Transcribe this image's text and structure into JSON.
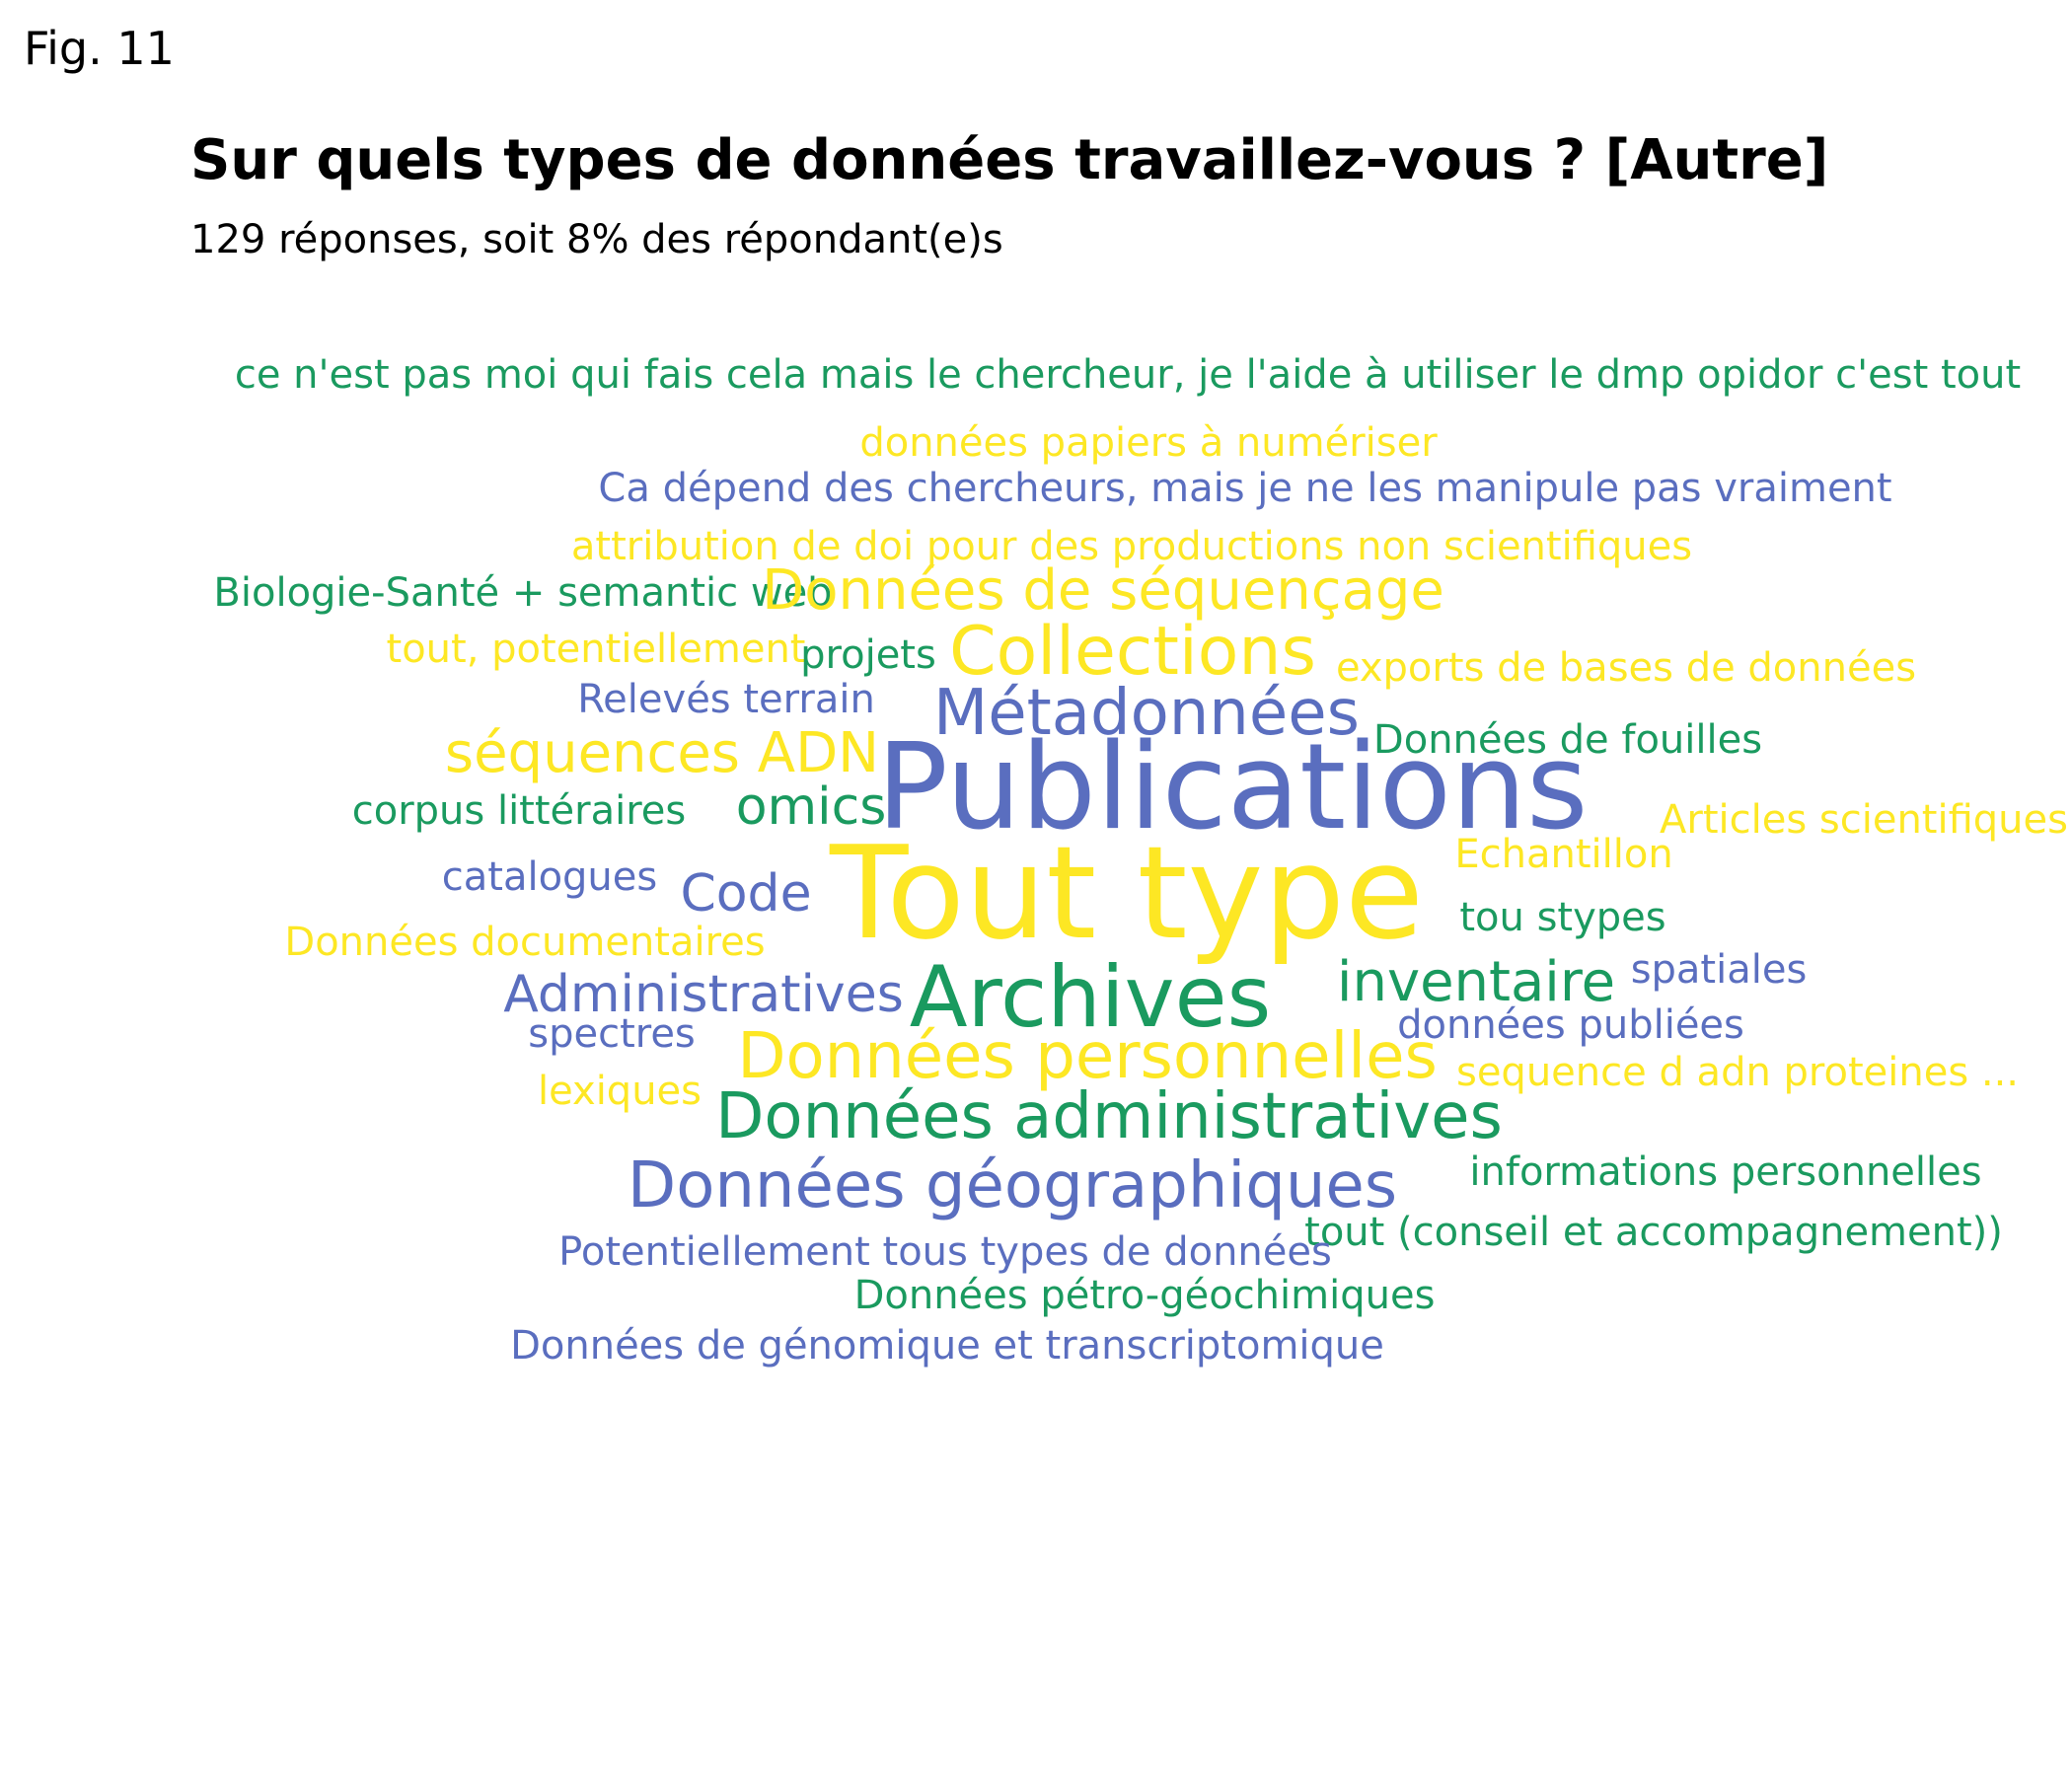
{
  "figure_label": "Fig. 11",
  "title": "Sur quels types de données travaillez-vous ? [Autre]",
  "subtitle": "129 réponses, soit 8% des répondant(e)s",
  "colors": {
    "green": "#1a9a5f",
    "blue": "#5a6ebf",
    "yellow": "#fde724"
  },
  "words": [
    {
      "text": "ce n'est pas moi qui fais cela mais le chercheur, je l'aide à utiliser le dmp opidor c'est tout",
      "color": "green"
    },
    {
      "text": "données papiers à numériser",
      "color": "yellow"
    },
    {
      "text": "Ca dépend des chercheurs, mais je ne les manipule pas vraiment",
      "color": "blue"
    },
    {
      "text": "attribution de doi pour des productions non scientifiques",
      "color": "yellow"
    },
    {
      "text": "Biologie-Santé + semantic web",
      "color": "green"
    },
    {
      "text": "Données de séquençage",
      "color": "yellow"
    },
    {
      "text": "tout, potentiellement",
      "color": "yellow"
    },
    {
      "text": "projets",
      "color": "green"
    },
    {
      "text": "Collections",
      "color": "yellow"
    },
    {
      "text": "exports de bases de données",
      "color": "yellow"
    },
    {
      "text": "Relevés terrain",
      "color": "blue"
    },
    {
      "text": "Métadonnées",
      "color": "blue"
    },
    {
      "text": "séquences ADN",
      "color": "yellow"
    },
    {
      "text": "Données de fouilles",
      "color": "green"
    },
    {
      "text": "Publications",
      "color": "blue"
    },
    {
      "text": "corpus littéraires",
      "color": "green"
    },
    {
      "text": "omics",
      "color": "green"
    },
    {
      "text": "Articles scientifiques",
      "color": "yellow"
    },
    {
      "text": "Echantillon",
      "color": "yellow"
    },
    {
      "text": "catalogues",
      "color": "blue"
    },
    {
      "text": "Code",
      "color": "blue"
    },
    {
      "text": "Tout type",
      "color": "yellow"
    },
    {
      "text": "tou stypes",
      "color": "green"
    },
    {
      "text": "Données documentaires",
      "color": "yellow"
    },
    {
      "text": "spatiales",
      "color": "blue"
    },
    {
      "text": "Administratives",
      "color": "blue"
    },
    {
      "text": "Archives",
      "color": "green"
    },
    {
      "text": "inventaire",
      "color": "green"
    },
    {
      "text": "spectres",
      "color": "blue"
    },
    {
      "text": "données publiées",
      "color": "blue"
    },
    {
      "text": "Données personnelles",
      "color": "yellow"
    },
    {
      "text": "sequence d adn proteines ...",
      "color": "yellow"
    },
    {
      "text": "lexiques",
      "color": "yellow"
    },
    {
      "text": "Données administratives",
      "color": "green"
    },
    {
      "text": "Données géographiques",
      "color": "blue"
    },
    {
      "text": "informations personnelles",
      "color": "green"
    },
    {
      "text": "tout (conseil et accompagnement))",
      "color": "green"
    },
    {
      "text": "Potentiellement tous types de données",
      "color": "blue"
    },
    {
      "text": "Données pétro-géochimiques",
      "color": "green"
    },
    {
      "text": "Données de génomique et transcriptomique",
      "color": "blue"
    }
  ]
}
